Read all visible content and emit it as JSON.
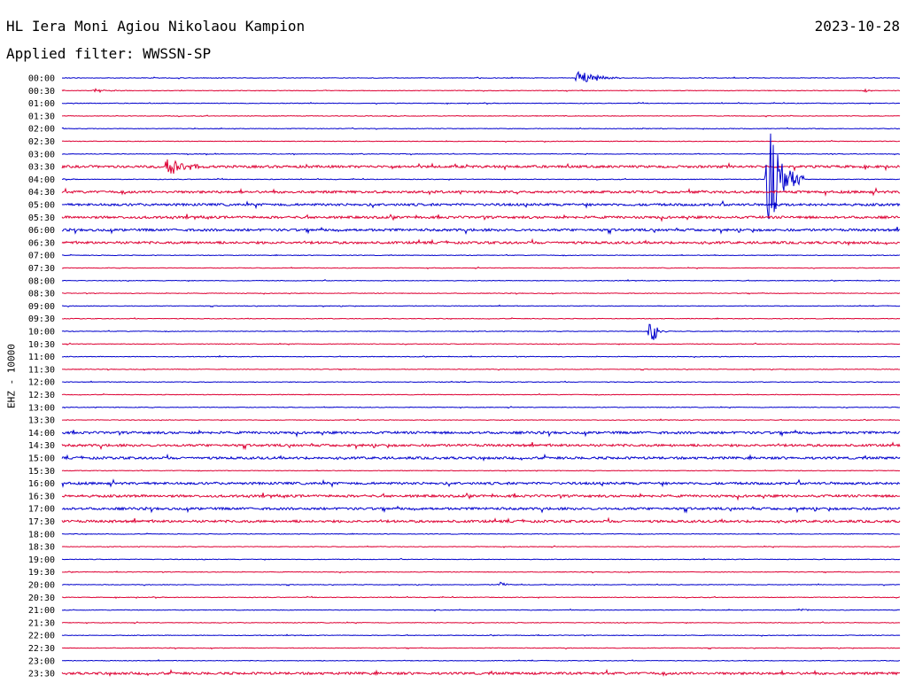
{
  "header": {
    "station": "HL Iera Moni Agiou Nikolaou Kampion",
    "filter": "Applied filter: WWSSN-SP",
    "date": "2023-10-28"
  },
  "chart_data": {
    "type": "line",
    "ylabel": "EHZ - 10000",
    "row_labels": [
      "00:00",
      "00:30",
      "01:00",
      "01:30",
      "02:00",
      "02:30",
      "03:00",
      "03:30",
      "04:00",
      "04:30",
      "05:00",
      "05:30",
      "06:00",
      "06:30",
      "07:00",
      "07:30",
      "08:00",
      "08:30",
      "09:00",
      "09:30",
      "10:00",
      "10:30",
      "11:00",
      "11:30",
      "12:00",
      "12:30",
      "13:00",
      "13:30",
      "14:00",
      "14:30",
      "15:00",
      "15:30",
      "16:00",
      "16:30",
      "17:00",
      "17:30",
      "18:00",
      "18:30",
      "19:00",
      "19:30",
      "20:00",
      "20:30",
      "21:00",
      "21:30",
      "22:00",
      "22:30",
      "23:00",
      "23:30"
    ],
    "colors": {
      "even": "#0000cc",
      "odd": "#dd0033"
    },
    "events": [
      {
        "row": "00:00",
        "minute": 18.5,
        "amp": 9,
        "dur": 1.6
      },
      {
        "row": "00:30",
        "minute": 1.2,
        "amp": 2,
        "dur": 1.2
      },
      {
        "row": "00:30",
        "minute": 28.8,
        "amp": 2,
        "dur": 0.3
      },
      {
        "row": "03:30",
        "minute": 3.8,
        "amp": 12,
        "dur": 1.5
      },
      {
        "row": "04:00",
        "minute": 25.3,
        "amp": 60,
        "dur": 1.3
      },
      {
        "row": "10:00",
        "minute": 21.1,
        "amp": 17,
        "dur": 0.6
      },
      {
        "row": "20:00",
        "minute": 15.7,
        "amp": 3,
        "dur": 0.6
      },
      {
        "row": "21:00",
        "minute": 26.4,
        "amp": 2,
        "dur": 0.5
      }
    ],
    "noisy_rows": [
      "03:30",
      "04:30",
      "05:00",
      "05:30",
      "06:00",
      "06:30",
      "14:00",
      "14:30",
      "15:00",
      "16:00",
      "16:30",
      "17:00",
      "17:30",
      "23:30"
    ]
  }
}
